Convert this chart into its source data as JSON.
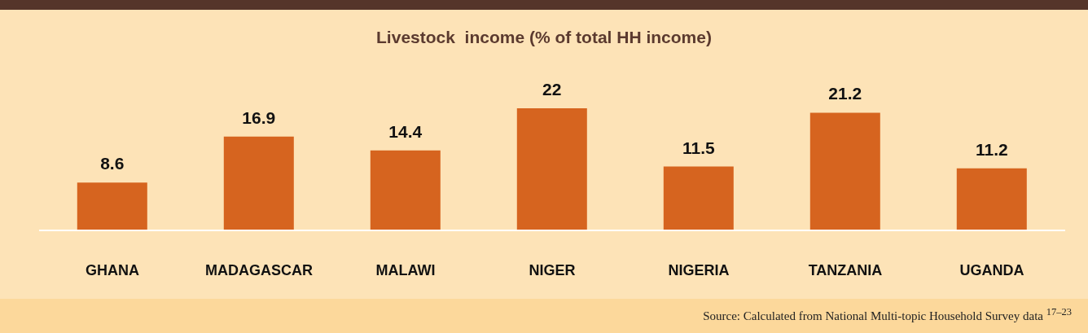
{
  "chart_data": {
    "type": "bar",
    "title": "Livestock  income (% of total HH income)",
    "categories": [
      "GHANA",
      "MADAGASCAR",
      "MALAWI",
      "NIGER",
      "NIGERIA",
      "TANZANIA",
      "UGANDA"
    ],
    "values": [
      8.6,
      16.9,
      14.4,
      22,
      11.5,
      21.2,
      11.2
    ],
    "color": "#d6641f",
    "data_labels": true,
    "grid": false,
    "legend": false,
    "annotations": [
      "Source: Calculated from National Multi-topic Household Survey data $^{17–23}$"
    ]
  }
}
